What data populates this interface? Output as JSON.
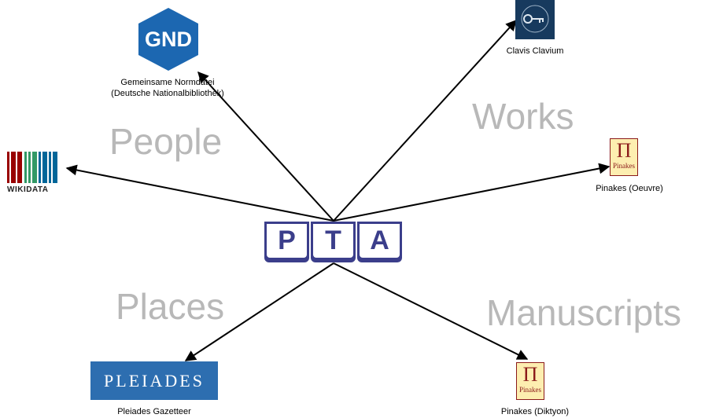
{
  "categories": {
    "people": "People",
    "works": "Works",
    "places": "Places",
    "manuscripts": "Manuscripts"
  },
  "center": {
    "letters": [
      "P",
      "T",
      "A"
    ]
  },
  "nodes": {
    "gnd": {
      "logo_text": "GND",
      "label_line1": "Gemeinsame Normdatei",
      "label_line2": "(Deutsche Nationalbibliothek)"
    },
    "wikidata": {
      "logo_text": "WIKIDATA"
    },
    "clavis": {
      "label": "Clavis Clavium"
    },
    "pinakes_oeuvre": {
      "logo_symbol": "Π",
      "logo_text": "Pinakes",
      "label": "Pinakes (Oeuvre)"
    },
    "pleiades": {
      "logo_text": "PLEIADES",
      "label": "Pleiades Gazetteer"
    },
    "pinakes_diktyon": {
      "logo_symbol": "Π",
      "logo_text": "Pinakes",
      "label": "Pinakes (Diktyon)"
    }
  },
  "colors": {
    "category_text": "#b8b8b8",
    "pta_blue": "#3b3e8b",
    "gnd_blue": "#1c67b1",
    "pleiades_blue": "#2d6eb0",
    "pinakes_fill": "#fdeeb0",
    "pinakes_red": "#8b1a1a"
  }
}
